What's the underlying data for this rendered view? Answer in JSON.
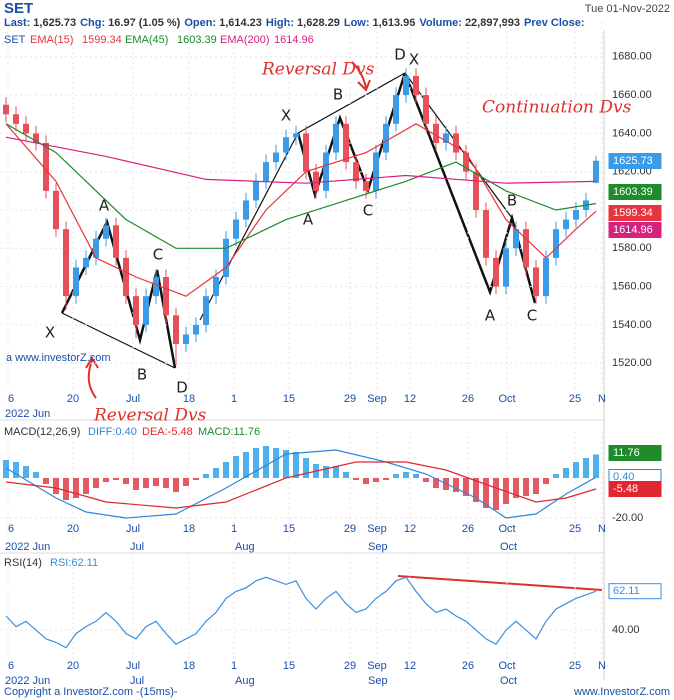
{
  "header": {
    "symbol": "SET",
    "date": "Tue 01-Nov-2022",
    "quote": [
      {
        "label": "Last:",
        "value": "1,625.73"
      },
      {
        "label": "Chg:",
        "value": "16.97 (1.05 %)"
      },
      {
        "label": "Open:",
        "value": "1,614.23"
      },
      {
        "label": "High:",
        "value": "1,628.29"
      },
      {
        "label": "Low:",
        "value": "1,613.96"
      },
      {
        "label": "Volume:",
        "value": "22,897,993"
      },
      {
        "label": "Prev Close:"
      }
    ]
  },
  "x_axis": {
    "labels": [
      "6",
      "20",
      "Jul",
      "18",
      "1",
      "15",
      "29",
      "Sep",
      "12",
      "26",
      "Oct",
      "25",
      "N"
    ],
    "months": [
      "2022 Jun",
      "Jul",
      "Aug",
      "Sep",
      "Oct"
    ]
  },
  "chart_data": [
    {
      "type": "candlestick",
      "legend_title": "SET",
      "up_color": "#3b9be6",
      "down_color": "#e6505a",
      "open": [
        1655,
        1650,
        1645,
        1640,
        1635,
        1610,
        1590,
        1555,
        1570,
        1575,
        1585,
        1592,
        1575,
        1555,
        1540,
        1555,
        1565,
        1545,
        1530,
        1535,
        1540,
        1555,
        1565,
        1585,
        1595,
        1605,
        1615,
        1625,
        1630,
        1638,
        1640,
        1620,
        1610,
        1630,
        1645,
        1625,
        1615,
        1610,
        1630,
        1645,
        1660,
        1670,
        1660,
        1645,
        1635,
        1640,
        1630,
        1620,
        1600,
        1575,
        1560,
        1580,
        1590,
        1570,
        1555,
        1575,
        1590,
        1595,
        1600,
        1614.23
      ],
      "high": [
        1659,
        1654,
        1649,
        1644,
        1639,
        1614,
        1594,
        1574,
        1579,
        1589,
        1596,
        1596,
        1579,
        1559,
        1559,
        1569,
        1569,
        1549,
        1539,
        1544,
        1559,
        1569,
        1589,
        1599,
        1609,
        1619,
        1629,
        1634,
        1642,
        1644,
        1644,
        1624,
        1634,
        1649,
        1649,
        1629,
        1619,
        1634,
        1649,
        1664,
        1674,
        1674,
        1664,
        1649,
        1644,
        1644,
        1634,
        1624,
        1604,
        1579,
        1584,
        1594,
        1594,
        1574,
        1579,
        1594,
        1599,
        1604,
        1609,
        1628.29
      ],
      "low": [
        1646,
        1641,
        1636,
        1631,
        1606,
        1586,
        1548,
        1551,
        1566,
        1571,
        1581,
        1571,
        1551,
        1533,
        1536,
        1551,
        1541,
        1519,
        1526,
        1531,
        1536,
        1551,
        1561,
        1581,
        1591,
        1601,
        1611,
        1621,
        1626,
        1634,
        1616,
        1606,
        1606,
        1626,
        1621,
        1611,
        1606,
        1606,
        1626,
        1641,
        1656,
        1656,
        1641,
        1631,
        1631,
        1626,
        1616,
        1596,
        1571,
        1556,
        1556,
        1576,
        1566,
        1551,
        1551,
        1571,
        1586,
        1591,
        1596,
        1613.96
      ],
      "close": [
        1650,
        1645,
        1640,
        1635,
        1610,
        1590,
        1555,
        1570,
        1575,
        1585,
        1592,
        1575,
        1555,
        1540,
        1555,
        1565,
        1545,
        1530,
        1535,
        1540,
        1555,
        1565,
        1585,
        1595,
        1605,
        1615,
        1625,
        1630,
        1638,
        1640,
        1620,
        1610,
        1630,
        1645,
        1625,
        1615,
        1610,
        1630,
        1645,
        1660,
        1670,
        1660,
        1645,
        1635,
        1640,
        1630,
        1620,
        1600,
        1575,
        1560,
        1580,
        1590,
        1570,
        1555,
        1575,
        1590,
        1595,
        1600,
        1605,
        1625.73
      ],
      "series": [
        {
          "name": "EMA(15)",
          "color": "#e8343c",
          "x": [
            0,
            5,
            9,
            13,
            18,
            22,
            26,
            30,
            36,
            41,
            46,
            50,
            54,
            57,
            59
          ],
          "values": [
            1645,
            1615,
            1575,
            1565,
            1555,
            1570,
            1600,
            1620,
            1630,
            1645,
            1630,
            1595,
            1575,
            1590,
            1599.34
          ]
        },
        {
          "name": "EMA(45)",
          "color": "#1e8c2a",
          "x": [
            0,
            5,
            12,
            17,
            22,
            28,
            34,
            40,
            45,
            50,
            55,
            59
          ],
          "values": [
            1645,
            1630,
            1595,
            1580,
            1580,
            1595,
            1605,
            1615,
            1625,
            1610,
            1600,
            1603.39
          ]
        },
        {
          "name": "EMA(200)",
          "color": "#d6217e",
          "x": [
            0,
            10,
            20,
            30,
            40,
            50,
            59
          ],
          "values": [
            1638,
            1628,
            1616,
            1614,
            1618,
            1614,
            1614.96
          ]
        }
      ],
      "ylim": [
        1506,
        1694
      ],
      "yticks": [
        {
          "value": 1520,
          "label": "1520.00"
        },
        {
          "value": 1540,
          "label": "1540.00"
        },
        {
          "value": 1560,
          "label": "1560.00"
        },
        {
          "value": 1580,
          "label": "1580.00"
        },
        {
          "value": 1600,
          "label": "1600.00"
        },
        {
          "value": 1620,
          "label": "1620.00"
        },
        {
          "value": 1640,
          "label": "1640.00"
        },
        {
          "value": 1660,
          "label": "1660.00"
        },
        {
          "value": 1680,
          "label": "1680.00"
        }
      ],
      "watermark": "a www.investorZ.com",
      "annotations": [
        "Reversal Dvs",
        "Continuation Dvs",
        "Reversal Dvs"
      ],
      "pattern_labels": [
        "X",
        "A",
        "B",
        "C",
        "D",
        "X",
        "A",
        "B",
        "C",
        "D",
        "X",
        "A",
        "B",
        "C"
      ]
    },
    {
      "type": "macd",
      "legend": [
        "MACD(12,26,9)",
        "DIFF:0.40",
        "DEA:-5.48",
        "MACD:11.76"
      ],
      "up_color": "#4fb0ee",
      "down_color": "#e25a64",
      "values": [
        9,
        8,
        6,
        3,
        -3,
        -8,
        -11,
        -10,
        -8,
        -5,
        -2,
        -1,
        -3,
        -6,
        -5,
        -4,
        -5,
        -7,
        -4,
        -1,
        2,
        5,
        8,
        11,
        13,
        15,
        16,
        15,
        14,
        13,
        10,
        7,
        6,
        6,
        3,
        -1,
        -3,
        -2,
        -1,
        2,
        3,
        2,
        -2,
        -5,
        -6,
        -7,
        -9,
        -12,
        -15,
        -16,
        -13,
        -10,
        -9,
        -8,
        -3,
        2,
        5,
        8,
        10,
        11.76
      ],
      "series": [
        {
          "name": "DIFF",
          "color": "#2f86d8",
          "x": [
            0,
            5,
            8,
            12,
            17,
            22,
            28,
            33,
            38,
            42,
            47,
            50,
            53,
            56,
            59
          ],
          "values": [
            5,
            -10,
            -17,
            -20,
            -18,
            -5,
            12,
            14,
            8,
            2,
            -10,
            -20,
            -18,
            -8,
            0.4
          ],
          "last_label": "0.40"
        },
        {
          "name": "DEA",
          "color": "#e0262e",
          "x": [
            0,
            5,
            10,
            17,
            22,
            28,
            35,
            40,
            44,
            49,
            53,
            56,
            59
          ],
          "values": [
            -2,
            -5,
            -12,
            -15,
            -12,
            0,
            8,
            8,
            4,
            -5,
            -12,
            -10,
            -5.48
          ]
        }
      ],
      "ylim": [
        -31,
        19
      ],
      "yticks": [
        {
          "value": -20,
          "label": "-20.00"
        }
      ]
    },
    {
      "type": "line",
      "legend": [
        "RSI(14)",
        "RSI:62.11"
      ],
      "series": [
        {
          "name": "RSI",
          "color": "#3b8fdc",
          "values": [
            48,
            42,
            45,
            40,
            35,
            33,
            30,
            38,
            42,
            45,
            50,
            45,
            38,
            35,
            42,
            45,
            38,
            32,
            35,
            38,
            45,
            50,
            58,
            62,
            64,
            68,
            70,
            68,
            66,
            68,
            58,
            52,
            58,
            62,
            55,
            50,
            52,
            58,
            62,
            68,
            70,
            62,
            55,
            50,
            52,
            48,
            45,
            40,
            35,
            32,
            40,
            45,
            40,
            35,
            45,
            52,
            55,
            58,
            60,
            62.11
          ]
        }
      ],
      "ylim": [
        23,
        77
      ],
      "yticks": [
        {
          "value": 40,
          "label": "40.00"
        }
      ]
    }
  ],
  "footer": {
    "copyright": "Copyright a InvestorZ.com -(15ms)-",
    "site": "www.InvestorZ.com"
  }
}
